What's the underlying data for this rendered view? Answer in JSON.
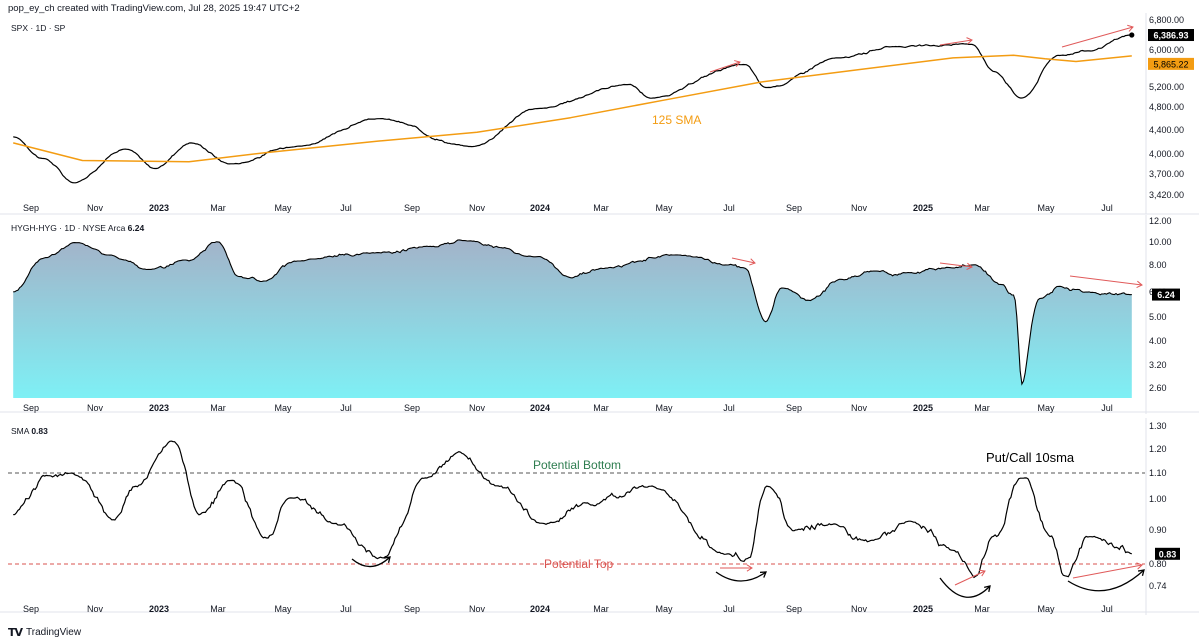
{
  "header": {
    "attribution": "pop_ey_ch created with TradingView.com, Jul 28, 2025 19:47 UTC+2"
  },
  "footer": {
    "brand": "TradingView"
  },
  "colors": {
    "price_line": "#000000",
    "sma_line": "#f39c12",
    "sma_badge": "#f39c12",
    "arrow": "#e05a5a",
    "bottom_line": "#2e7d4f",
    "top_line": "#d9534f",
    "area_top": "#a3b3c9",
    "area_bottom": "#7ef0f5",
    "badge_dark": "#000000"
  },
  "x_axis_labels": [
    "Sep",
    "Nov",
    "2023",
    "Mar",
    "May",
    "Jul",
    "Sep",
    "Nov",
    "2024",
    "Mar",
    "May",
    "Jul",
    "Sep",
    "Nov",
    "2025",
    "Mar",
    "May",
    "Jul"
  ],
  "chart_data": [
    {
      "type": "line",
      "title": "SPX · 1D · SP",
      "y_axis": {
        "scale": "log",
        "ticks": [
          "6,800.00",
          "6,000.00",
          "5,200.00",
          "4,800.00",
          "4,400.00",
          "4,000.00",
          "3,700.00",
          "3,420.00"
        ]
      },
      "series": [
        {
          "name": "SPX",
          "points": [
            [
              "2022-08-15",
              4280
            ],
            [
              "2022-09-13",
              3930
            ],
            [
              "2022-10-12",
              3580
            ],
            [
              "2022-11-30",
              4080
            ],
            [
              "2022-12-28",
              3780
            ],
            [
              "2023-02-02",
              4180
            ],
            [
              "2023-03-13",
              3850
            ],
            [
              "2023-05-15",
              4130
            ],
            [
              "2023-07-31",
              4590
            ],
            [
              "2023-10-27",
              4120
            ],
            [
              "2023-12-29",
              4770
            ],
            [
              "2024-03-28",
              5250
            ],
            [
              "2024-04-19",
              4970
            ],
            [
              "2024-07-16",
              5670
            ],
            [
              "2024-08-05",
              5190
            ],
            [
              "2024-10-15",
              5820
            ],
            [
              "2024-12-06",
              6090
            ],
            [
              "2025-02-19",
              6144
            ],
            [
              "2025-03-13",
              5520
            ],
            [
              "2025-04-08",
              4980
            ],
            [
              "2025-05-13",
              5880
            ],
            [
              "2025-06-13",
              5980
            ],
            [
              "2025-07-25",
              6386.93
            ]
          ]
        },
        {
          "name": "125 SMA",
          "points": [
            [
              "2022-08-15",
              4180
            ],
            [
              "2022-10-20",
              3900
            ],
            [
              "2023-01-31",
              3880
            ],
            [
              "2023-04-14",
              4020
            ],
            [
              "2023-07-31",
              4210
            ],
            [
              "2023-11-01",
              4360
            ],
            [
              "2024-01-31",
              4610
            ],
            [
              "2024-04-30",
              4930
            ],
            [
              "2024-07-31",
              5300
            ],
            [
              "2024-10-31",
              5560
            ],
            [
              "2025-01-31",
              5820
            ],
            [
              "2025-03-31",
              5880
            ],
            [
              "2025-04-30",
              5800
            ],
            [
              "2025-05-31",
              5740
            ],
            [
              "2025-07-25",
              5865.22
            ]
          ]
        }
      ],
      "last_value": "6,386.93",
      "sma_value": "5,865.22",
      "annotation": "125 SMA"
    },
    {
      "type": "area",
      "title": "HYGH-HYG · 1D · NYSE Arca",
      "title_value": "6.24",
      "y_axis": {
        "ticks": [
          "12.00",
          "10.00",
          "8.00",
          "6.40",
          "5.00",
          "4.00",
          "3.20",
          "2.60"
        ]
      },
      "series": [
        {
          "name": "HYGH-HYG",
          "points": [
            [
              "2022-08-15",
              6.4
            ],
            [
              "2022-09-15",
              8.6
            ],
            [
              "2022-10-14",
              9.9
            ],
            [
              "2022-11-15",
              8.8
            ],
            [
              "2022-12-20",
              7.7
            ],
            [
              "2023-01-31",
              8.3
            ],
            [
              "2023-03-01",
              10.0
            ],
            [
              "2023-03-20",
              7.3
            ],
            [
              "2023-04-14",
              7.0
            ],
            [
              "2023-05-15",
              8.3
            ],
            [
              "2023-07-31",
              9.0
            ],
            [
              "2023-09-15",
              9.6
            ],
            [
              "2023-10-20",
              10.1
            ],
            [
              "2023-12-29",
              8.7
            ],
            [
              "2024-01-31",
              7.2
            ],
            [
              "2024-03-01",
              7.8
            ],
            [
              "2024-05-15",
              8.8
            ],
            [
              "2024-07-01",
              8.0
            ],
            [
              "2024-07-15",
              7.8
            ],
            [
              "2024-08-05",
              4.8
            ],
            [
              "2024-08-20",
              6.6
            ],
            [
              "2024-09-15",
              5.9
            ],
            [
              "2024-10-15",
              7.1
            ],
            [
              "2024-11-15",
              7.6
            ],
            [
              "2024-12-15",
              7.5
            ],
            [
              "2025-01-31",
              7.8
            ],
            [
              "2025-02-21",
              8.0
            ],
            [
              "2025-03-20",
              6.8
            ],
            [
              "2025-03-31",
              6.2
            ],
            [
              "2025-04-08",
              2.7
            ],
            [
              "2025-04-25",
              6.0
            ],
            [
              "2025-05-15",
              6.7
            ],
            [
              "2025-06-10",
              6.4
            ],
            [
              "2025-07-25",
              6.24
            ]
          ]
        }
      ],
      "last_value": "6.24"
    },
    {
      "type": "line",
      "title": "SMA",
      "title_value": "0.83",
      "y_axis": {
        "ticks": [
          "1.30",
          "1.20",
          "1.10",
          "1.00",
          "0.90",
          "0.80",
          "0.74"
        ]
      },
      "series": [
        {
          "name": "SMA",
          "points": [
            [
              "2022-08-15",
              0.95
            ],
            [
              "2022-09-20",
              1.09
            ],
            [
              "2022-10-10",
              1.1
            ],
            [
              "2022-11-20",
              0.93
            ],
            [
              "2022-12-10",
              1.05
            ],
            [
              "2023-01-15",
              1.23
            ],
            [
              "2023-02-10",
              0.95
            ],
            [
              "2023-03-13",
              1.07
            ],
            [
              "2023-04-14",
              0.88
            ],
            [
              "2023-05-10",
              1.0
            ],
            [
              "2023-06-20",
              0.92
            ],
            [
              "2023-08-04",
              0.82
            ],
            [
              "2023-09-15",
              1.08
            ],
            [
              "2023-10-15",
              1.19
            ],
            [
              "2023-11-20",
              1.05
            ],
            [
              "2024-01-10",
              0.92
            ],
            [
              "2024-02-20",
              0.98
            ],
            [
              "2024-04-18",
              1.05
            ],
            [
              "2024-06-28",
              0.83
            ],
            [
              "2024-07-20",
              0.82
            ],
            [
              "2024-08-06",
              1.05
            ],
            [
              "2024-09-01",
              0.9
            ],
            [
              "2024-10-10",
              0.92
            ],
            [
              "2024-11-15",
              0.87
            ],
            [
              "2024-12-20",
              0.93
            ],
            [
              "2025-01-31",
              0.84
            ],
            [
              "2025-02-21",
              0.76
            ],
            [
              "2025-03-15",
              0.88
            ],
            [
              "2025-04-08",
              1.08
            ],
            [
              "2025-05-05",
              0.88
            ],
            [
              "2025-05-20",
              0.77
            ],
            [
              "2025-06-15",
              0.88
            ],
            [
              "2025-07-10",
              0.85
            ],
            [
              "2025-07-25",
              0.83
            ]
          ]
        }
      ],
      "reference_lines": [
        {
          "label": "Potential Bottom",
          "value": 1.1
        },
        {
          "label": "Potential Top",
          "value": 0.8
        }
      ],
      "annotation": "Put/Call 10sma",
      "last_value": "0.83"
    }
  ]
}
